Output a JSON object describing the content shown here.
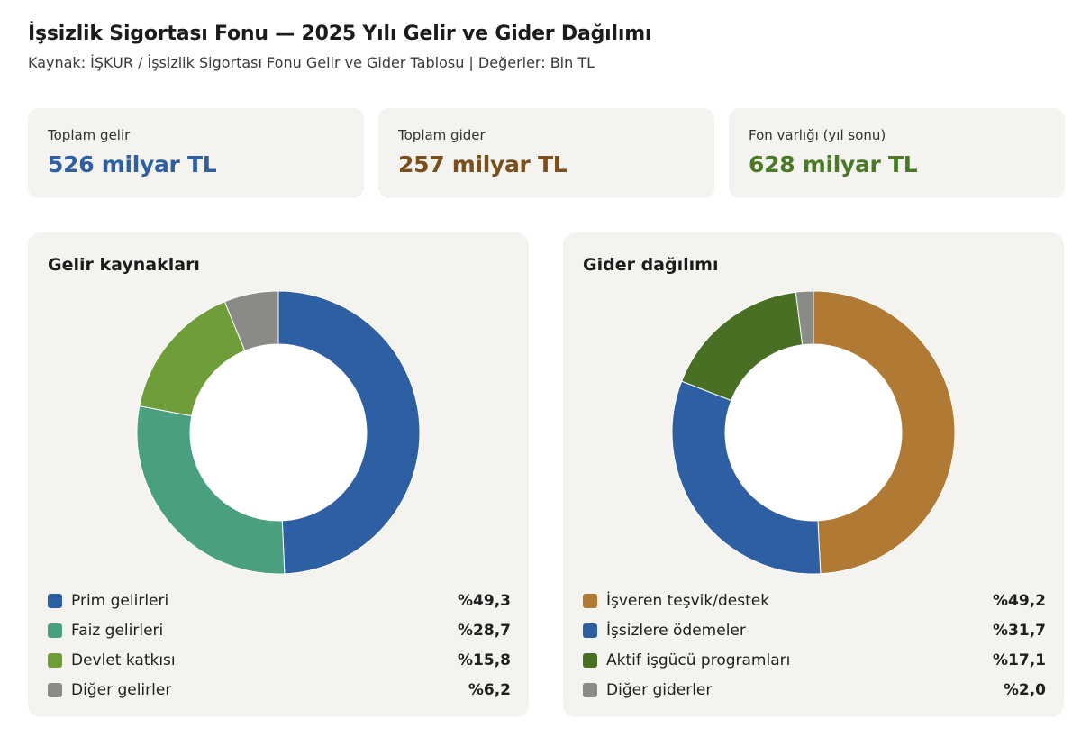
{
  "header": {
    "title": "İşsizlik Sigortası Fonu — 2025 Yılı Gelir ve Gider Dağılımı",
    "subtitle": "Kaynak: İŞKUR / İşsizlik Sigortası Fonu Gelir ve Gider Tablosu  |  Değerler: Bin TL"
  },
  "kpis": [
    {
      "label": "Toplam gelir",
      "value": "526 milyar TL",
      "color": "#2e5fa3"
    },
    {
      "label": "Toplam gider",
      "value": "257 milyar TL",
      "color": "#7a4f1c"
    },
    {
      "label": "Fon varlığı (yıl sonu)",
      "value": "628 milyar TL",
      "color": "#4a7a26"
    }
  ],
  "chart_data": [
    {
      "type": "pie",
      "title": "Gelir kaynakları",
      "donut": true,
      "categories": [
        "Prim gelirleri",
        "Faiz gelirleri",
        "Devlet katkısı",
        "Diğer gelirler"
      ],
      "values": [
        49.3,
        28.7,
        15.8,
        6.2
      ],
      "value_labels": [
        "%49,3",
        "%28,7",
        "%15,8",
        "%6,2"
      ],
      "colors": [
        "#2e5fa3",
        "#4aa07e",
        "#6f9d3a",
        "#8a8a87"
      ],
      "legend_position": "bottom"
    },
    {
      "type": "pie",
      "title": "Gider dağılımı",
      "donut": true,
      "categories": [
        "İşveren teşvik/destek",
        "İşsizlere ödemeler",
        "Aktif işgücü programları",
        "Diğer giderler"
      ],
      "values": [
        49.2,
        31.7,
        17.1,
        2.0
      ],
      "value_labels": [
        "%49,2",
        "%31,7",
        "%17,1",
        "%2,0"
      ],
      "colors": [
        "#b07a34",
        "#2e5fa3",
        "#486f24",
        "#8a8a87"
      ],
      "legend_position": "bottom"
    }
  ]
}
